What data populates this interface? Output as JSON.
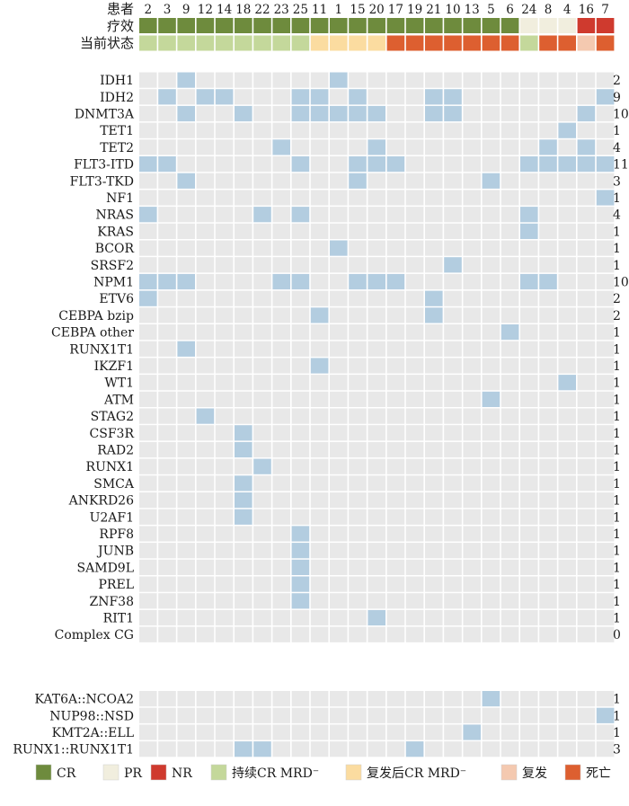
{
  "header": {
    "patient_label": "患者",
    "efficacy_label": "疗效",
    "status_label": "当前状态"
  },
  "patients": [
    "2",
    "3",
    "9",
    "12",
    "14",
    "18",
    "22",
    "23",
    "25",
    "11",
    "1",
    "15",
    "20",
    "17",
    "19",
    "21",
    "10",
    "13",
    "5",
    "6",
    "24",
    "8",
    "4",
    "16",
    "7"
  ],
  "efficacy": [
    "CR",
    "CR",
    "CR",
    "CR",
    "CR",
    "CR",
    "CR",
    "CR",
    "CR",
    "CR",
    "CR",
    "CR",
    "CR",
    "CR",
    "CR",
    "CR",
    "CR",
    "CR",
    "CR",
    "CR",
    "PR",
    "PR",
    "PR",
    "NR",
    "NR"
  ],
  "status": [
    "MRD_sustained",
    "MRD_sustained",
    "MRD_sustained",
    "MRD_sustained",
    "MRD_sustained",
    "MRD_sustained",
    "MRD_sustained",
    "MRD_sustained",
    "MRD_sustained",
    "MRD_relapse",
    "MRD_relapse",
    "MRD_relapse",
    "MRD_relapse",
    "death",
    "death",
    "death",
    "death",
    "death",
    "death",
    "death",
    "MRD_sustained",
    "death",
    "death",
    "relapse",
    "death"
  ],
  "colors": {
    "CR": "#6e8b3d",
    "PR": "#f1eede",
    "NR": "#cf3a2e",
    "MRD_sustained": "#c4d89b",
    "MRD_relapse": "#fbdca0",
    "relapse": "#f4c9b0",
    "death": "#dd5f30",
    "cell_empty": "#e8e8e8",
    "cell_filled": "#b3cde0"
  },
  "genes": [
    {
      "name": "IDH1",
      "count": "2",
      "hits": [
        "9",
        "1"
      ]
    },
    {
      "name": "IDH2",
      "count": "9",
      "hits": [
        "3",
        "12",
        "14",
        "25",
        "11",
        "15",
        "21",
        "10",
        "7"
      ]
    },
    {
      "name": "DNMT3A",
      "count": "10",
      "hits": [
        "9",
        "18",
        "25",
        "11",
        "1",
        "15",
        "20",
        "21",
        "10",
        "16"
      ]
    },
    {
      "name": "TET1",
      "count": "1",
      "hits": [
        "4"
      ]
    },
    {
      "name": "TET2",
      "count": "4",
      "hits": [
        "23",
        "20",
        "8",
        "16"
      ]
    },
    {
      "name": "FLT3-ITD",
      "count": "11",
      "hits": [
        "2",
        "3",
        "25",
        "15",
        "20",
        "17",
        "24",
        "8",
        "4",
        "16",
        "7"
      ]
    },
    {
      "name": "FLT3-TKD",
      "count": "3",
      "hits": [
        "9",
        "15",
        "5"
      ]
    },
    {
      "name": "NF1",
      "count": "1",
      "hits": [
        "7"
      ]
    },
    {
      "name": "NRAS",
      "count": "4",
      "hits": [
        "2",
        "22",
        "25",
        "24"
      ]
    },
    {
      "name": "KRAS",
      "count": "1",
      "hits": [
        "24"
      ]
    },
    {
      "name": "BCOR",
      "count": "1",
      "hits": [
        "1"
      ]
    },
    {
      "name": "SRSF2",
      "count": "1",
      "hits": [
        "10"
      ]
    },
    {
      "name": "NPM1",
      "count": "10",
      "hits": [
        "2",
        "3",
        "9",
        "23",
        "25",
        "15",
        "20",
        "17",
        "24",
        "8"
      ]
    },
    {
      "name": "ETV6",
      "count": "2",
      "hits": [
        "2",
        "21"
      ]
    },
    {
      "name": "CEBPA bzip",
      "count": "2",
      "hits": [
        "11",
        "21"
      ]
    },
    {
      "name": "CEBPA other",
      "count": "1",
      "hits": [
        "6"
      ]
    },
    {
      "name": "RUNX1T1",
      "count": "1",
      "hits": [
        "9"
      ]
    },
    {
      "name": "IKZF1",
      "count": "1",
      "hits": [
        "11"
      ]
    },
    {
      "name": "WT1",
      "count": "1",
      "hits": [
        "4"
      ]
    },
    {
      "name": "ATM",
      "count": "1",
      "hits": [
        "5"
      ]
    },
    {
      "name": "STAG2",
      "count": "1",
      "hits": [
        "12"
      ]
    },
    {
      "name": "CSF3R",
      "count": "1",
      "hits": [
        "18"
      ]
    },
    {
      "name": "RAD2",
      "count": "1",
      "hits": [
        "18"
      ]
    },
    {
      "name": "RUNX1",
      "count": "1",
      "hits": [
        "22"
      ]
    },
    {
      "name": "SMCA",
      "count": "1",
      "hits": [
        "18"
      ]
    },
    {
      "name": "ANKRD26",
      "count": "1",
      "hits": [
        "18"
      ]
    },
    {
      "name": "U2AF1",
      "count": "1",
      "hits": [
        "18"
      ]
    },
    {
      "name": "RPF8",
      "count": "1",
      "hits": [
        "25"
      ]
    },
    {
      "name": "JUNB",
      "count": "1",
      "hits": [
        "25"
      ]
    },
    {
      "name": "SAMD9L",
      "count": "1",
      "hits": [
        "25"
      ]
    },
    {
      "name": "PREL",
      "count": "1",
      "hits": [
        "25"
      ]
    },
    {
      "name": "ZNF38",
      "count": "1",
      "hits": [
        "25"
      ]
    },
    {
      "name": "RIT1",
      "count": "1",
      "hits": [
        "20"
      ]
    },
    {
      "name": "Complex CG",
      "count": "0",
      "hits": []
    }
  ],
  "fusions": [
    {
      "name": "KAT6A::NCOA2",
      "count": "1",
      "hits": [
        "5"
      ]
    },
    {
      "name": "NUP98::NSD",
      "count": "1",
      "hits": [
        "7"
      ]
    },
    {
      "name": "KMT2A::ELL",
      "count": "1",
      "hits": [
        "13"
      ]
    },
    {
      "name": "RUNX1::RUNX1T1",
      "count": "3",
      "hits": [
        "18",
        "22",
        "19"
      ]
    }
  ],
  "legend": [
    {
      "key": "CR",
      "label": "CR"
    },
    {
      "key": "PR",
      "label": "PR"
    },
    {
      "key": "NR",
      "label": "NR"
    },
    {
      "key": "MRD_sustained",
      "label": "持续CR MRD⁻"
    },
    {
      "key": "MRD_relapse",
      "label": "复发后CR MRD⁻"
    },
    {
      "key": "relapse",
      "label": "复发"
    },
    {
      "key": "death",
      "label": "死亡"
    }
  ]
}
